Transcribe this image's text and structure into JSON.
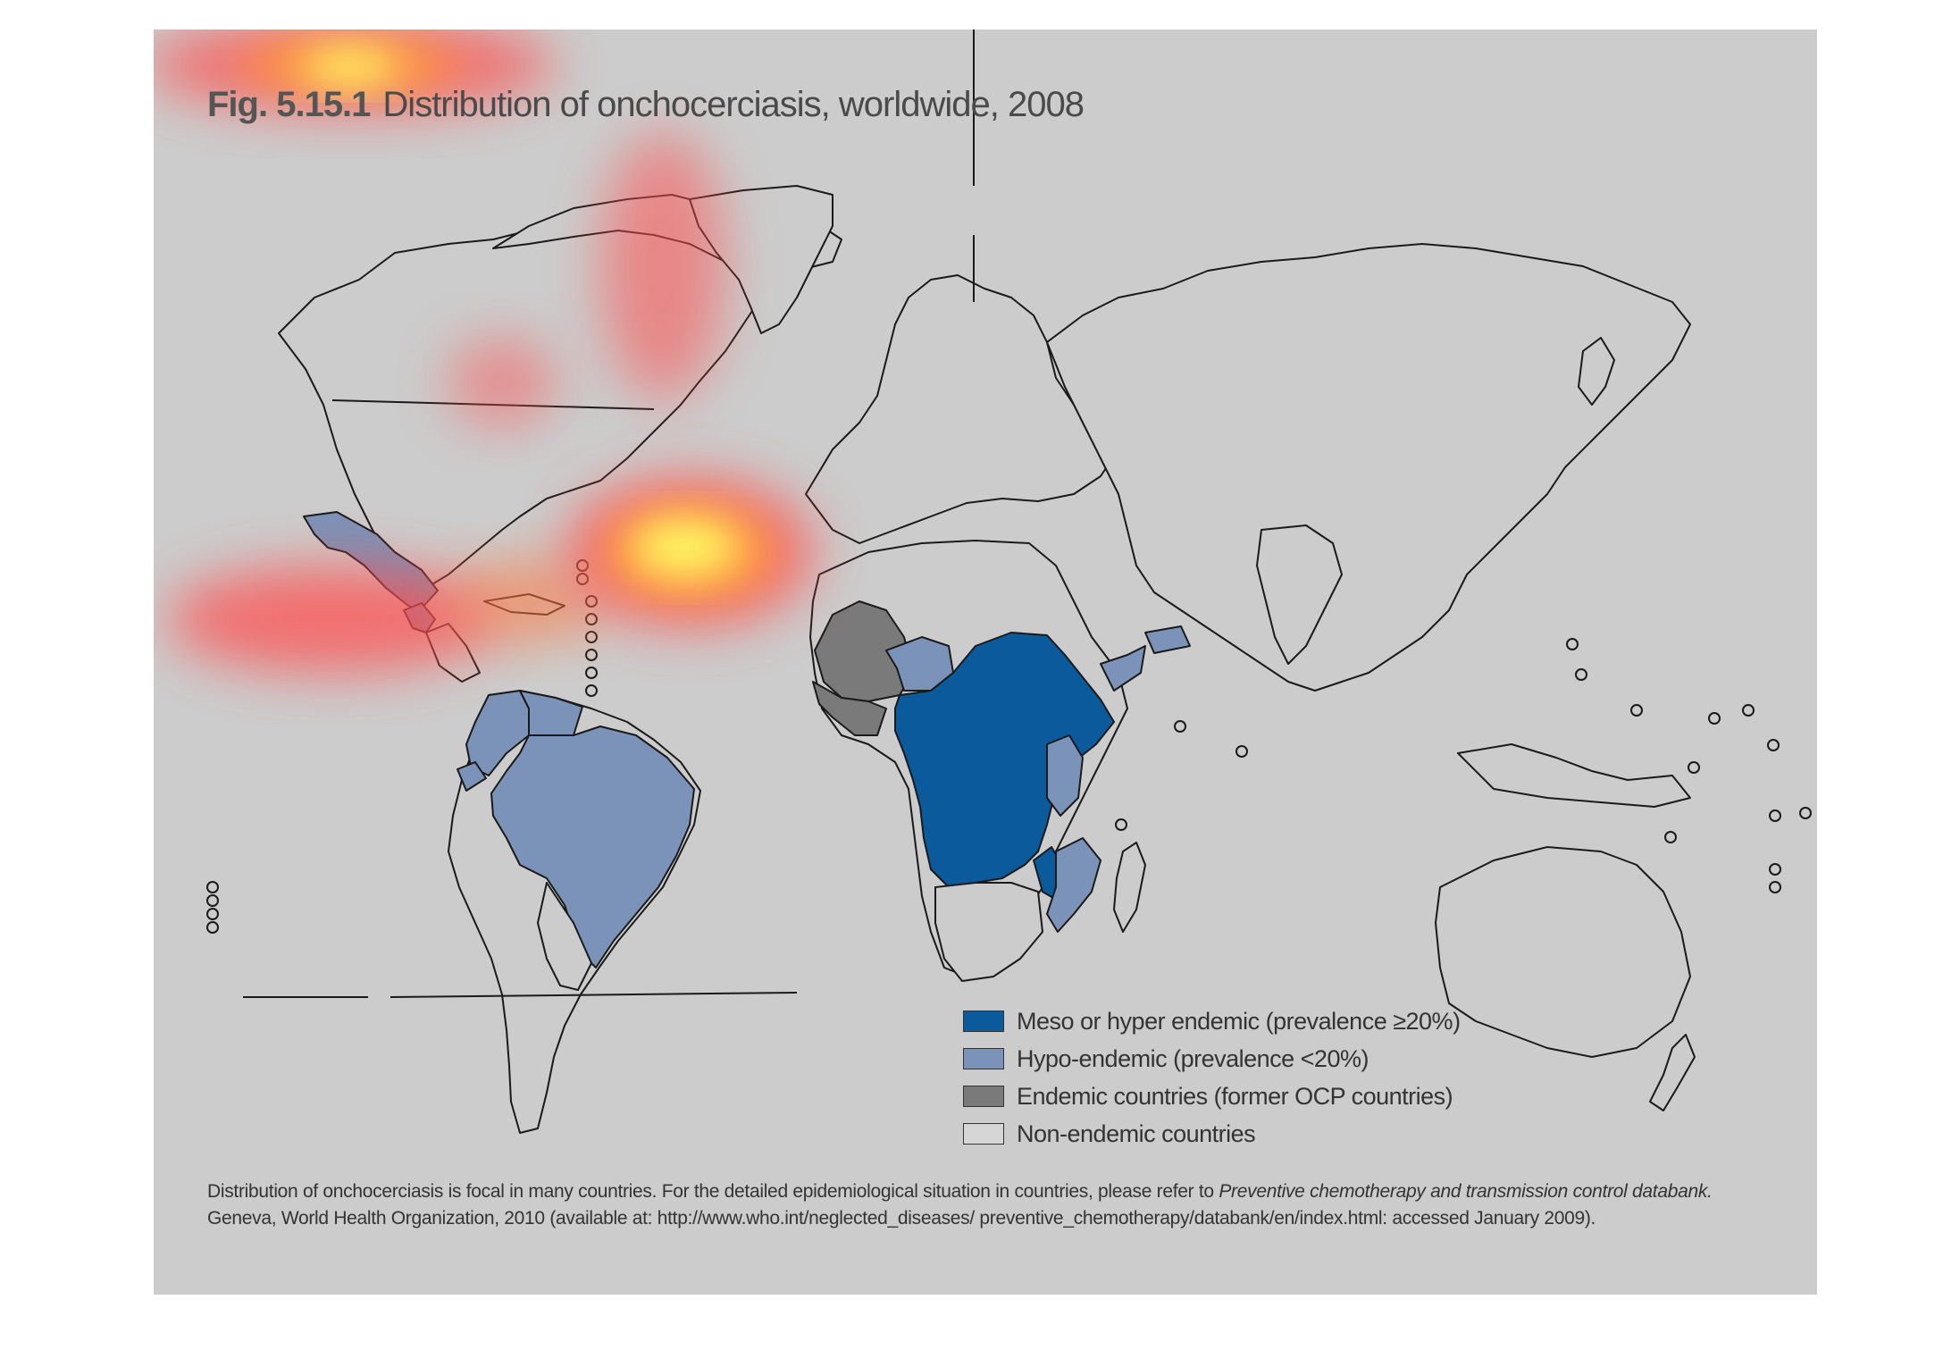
{
  "figure": {
    "number": "Fig. 5.15.1",
    "title": "Distribution of onchocerciasis, worldwide, 2008"
  },
  "legend": [
    {
      "label": "Meso or hyper endemic (prevalence ≥20%)",
      "color": "#0a5a9c"
    },
    {
      "label": "Hypo-endemic (prevalence <20%)",
      "color": "#7b93b8"
    },
    {
      "label": "Endemic countries (former OCP countries)",
      "color": "#7a7a7a"
    },
    {
      "label": "Non-endemic countries",
      "color": "#d6d6d6"
    }
  ],
  "caption": {
    "line1_plain": "Distribution of onchocerciasis is focal in many countries. For the detailed epidemiological situation in countries, please refer to ",
    "line1_italic": "Preventive chemotherapy and transmission control databank.",
    "line2": "Geneva, World Health Organization, 2010 (available at: http://www.who.int/neglected_diseases/ preventive_chemotherapy/databank/en/index.html: accessed January 2009)."
  },
  "colors": {
    "panel_bg": "#cccccc",
    "outline": "#1a1a1a",
    "heatmap_hot": "#ffff66",
    "heatmap_mid": "#ff9a3c",
    "heatmap_low": "#ff5050"
  }
}
